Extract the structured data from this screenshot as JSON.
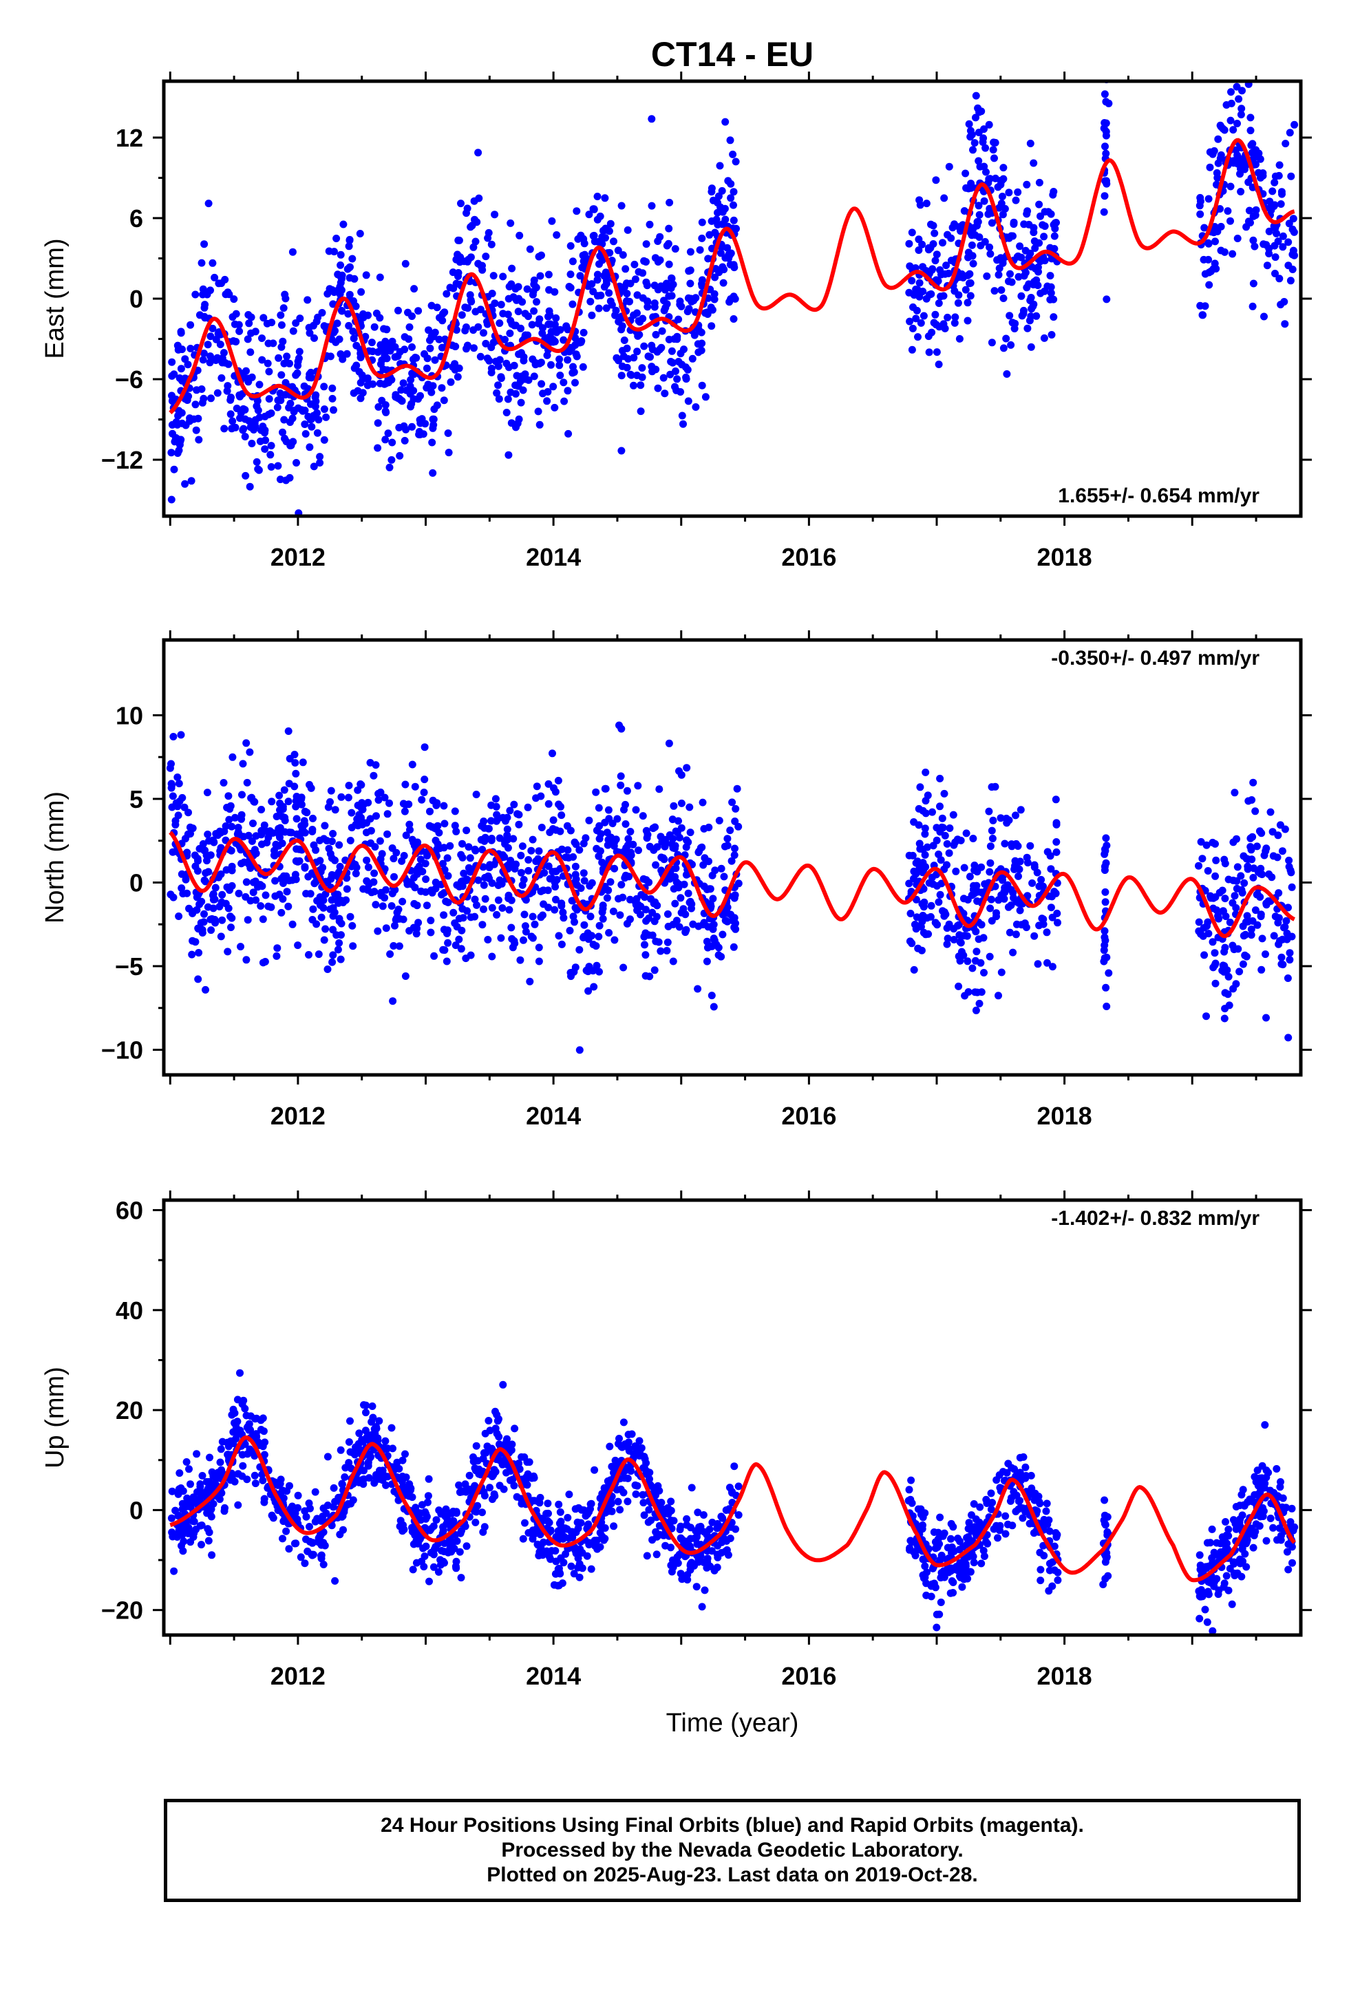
{
  "title": "CT14 - EU",
  "footer": {
    "lines": [
      "24 Hour Positions Using Final Orbits (blue) and Rapid Orbits (magenta).",
      "Processed by the Nevada Geodetic Laboratory.",
      "Plotted on 2025-Aug-23. Last data on 2019-Oct-28."
    ]
  },
  "colors": {
    "data_points": "#0000ff",
    "model_curve": "#ff0000",
    "frame": "#000000"
  },
  "chart_data": [
    {
      "type": "scatter",
      "component": "east",
      "ylabel": "East (mm)",
      "xlabel": "",
      "xlim": [
        2010.95,
        2019.85
      ],
      "ylim": [
        -16.2,
        16.2
      ],
      "x_ticks": [
        2012,
        2014,
        2016,
        2018
      ],
      "y_ticks": [
        -12,
        -6,
        0,
        6,
        12
      ],
      "rate_text": "1.655+/- 0.654 mm/yr",
      "rate_position": "bottom-right",
      "data_gaps": [
        [
          2015.45,
          2016.78
        ],
        [
          2017.95,
          2018.3
        ],
        [
          2018.35,
          2019.05
        ]
      ],
      "isolated_obs": [
        2018.32
      ],
      "series": [
        {
          "role": "observations",
          "trend": {
            "x0": 2011.0,
            "y0": -7.0,
            "x1": 2015.4,
            "y1": 7.0
          },
          "segments": [
            {
              "x": [
                2016.8,
                2017.1
              ],
              "y": [
                -2.0,
                0.0
              ]
            },
            {
              "x": [
                2017.1,
                2017.9
              ],
              "y": [
                8.0,
                2.0
              ]
            },
            {
              "x": [
                2019.05,
                2019.8
              ],
              "y": [
                5.0,
                2.0
              ]
            }
          ],
          "noise_mm": 3.2,
          "count": 2300
        },
        {
          "role": "model",
          "x": [
            2011.0,
            2011.15,
            2011.35,
            2011.6,
            2011.85,
            2012.1,
            2012.35,
            2012.6,
            2012.85,
            2013.1,
            2013.35,
            2013.6,
            2013.85,
            2014.1,
            2014.35,
            2014.6,
            2014.85,
            2015.1,
            2015.35,
            2015.6,
            2015.85,
            2016.1,
            2016.35,
            2016.6,
            2016.85,
            2017.1,
            2017.35,
            2017.6,
            2017.85,
            2018.1,
            2018.35,
            2018.6,
            2018.85,
            2019.1,
            2019.35,
            2019.6,
            2019.8
          ],
          "y": [
            -8.5,
            -6.0,
            -1.5,
            -7.0,
            -6.5,
            -7.0,
            0.0,
            -5.5,
            -5.0,
            -5.5,
            1.8,
            -3.5,
            -3.0,
            -3.5,
            3.8,
            -2.0,
            -1.5,
            -2.0,
            5.2,
            -0.5,
            0.3,
            -0.5,
            6.7,
            1.0,
            2.0,
            1.0,
            8.5,
            2.5,
            3.5,
            3.0,
            10.3,
            4.0,
            5.0,
            4.5,
            11.8,
            6.0,
            6.5
          ]
        }
      ]
    },
    {
      "type": "scatter",
      "component": "north",
      "ylabel": "North (mm)",
      "xlabel": "",
      "xlim": [
        2010.95,
        2019.85
      ],
      "ylim": [
        -11.5,
        14.5
      ],
      "x_ticks": [
        2012,
        2014,
        2016,
        2018
      ],
      "y_ticks": [
        -10,
        -5,
        0,
        5,
        10
      ],
      "rate_text": "-0.350+/- 0.497 mm/yr",
      "rate_position": "top-right",
      "data_gaps": [
        [
          2015.45,
          2016.78
        ],
        [
          2017.95,
          2018.3
        ],
        [
          2018.35,
          2019.05
        ]
      ],
      "isolated_obs": [
        2018.32
      ],
      "series": [
        {
          "role": "observations",
          "trend": {
            "x0": 2011.0,
            "y0": 3.5,
            "x1": 2015.4,
            "y1": -1.0
          },
          "segments": [
            {
              "x": [
                2016.8,
                2017.9
              ],
              "y": [
                -2.0,
                -3.0
              ]
            },
            {
              "x": [
                2019.05,
                2019.8
              ],
              "y": [
                0.0,
                0.0
              ]
            }
          ],
          "noise_mm": 2.6,
          "count": 2300
        },
        {
          "role": "model",
          "x": [
            2011.0,
            2011.25,
            2011.5,
            2011.75,
            2012.0,
            2012.25,
            2012.5,
            2012.75,
            2013.0,
            2013.25,
            2013.5,
            2013.75,
            2014.0,
            2014.25,
            2014.5,
            2014.75,
            2015.0,
            2015.25,
            2015.5,
            2015.75,
            2016.0,
            2016.25,
            2016.5,
            2016.75,
            2017.0,
            2017.25,
            2017.5,
            2017.75,
            2018.0,
            2018.25,
            2018.5,
            2018.75,
            2019.0,
            2019.25,
            2019.5,
            2019.8
          ],
          "y": [
            3.0,
            -0.5,
            2.6,
            0.5,
            2.5,
            -0.5,
            2.2,
            -0.2,
            2.2,
            -1.2,
            1.9,
            -0.8,
            1.8,
            -1.6,
            1.6,
            -0.6,
            1.5,
            -2.0,
            1.2,
            -1.0,
            1.0,
            -2.2,
            0.8,
            -1.2,
            0.8,
            -2.6,
            0.6,
            -1.4,
            0.5,
            -2.8,
            0.3,
            -1.8,
            0.2,
            -3.2,
            -0.3,
            -2.2
          ]
        }
      ]
    },
    {
      "type": "scatter",
      "component": "up",
      "ylabel": "Up (mm)",
      "xlabel": "Time (year)",
      "xlim": [
        2010.95,
        2019.85
      ],
      "ylim": [
        -25,
        62
      ],
      "x_ticks": [
        2012,
        2014,
        2016,
        2018
      ],
      "y_ticks": [
        -20,
        0,
        20,
        40,
        60
      ],
      "rate_text": "-1.402+/- 0.832 mm/yr",
      "rate_position": "top-right",
      "data_gaps": [
        [
          2015.45,
          2016.78
        ],
        [
          2017.95,
          2018.3
        ],
        [
          2018.35,
          2019.05
        ]
      ],
      "isolated_obs": [
        2018.32
      ],
      "series": [
        {
          "role": "observations",
          "trend": {
            "x0": 2011.0,
            "y0": 0.0,
            "x1": 2015.4,
            "y1": 0.0
          },
          "segments": [
            {
              "x": [
                2016.8,
                2017.9
              ],
              "y": [
                0.0,
                0.0
              ]
            },
            {
              "x": [
                2019.05,
                2019.8
              ],
              "y": [
                0.0,
                2.0
              ]
            }
          ],
          "noise_mm": 4.0,
          "count": 2300
        },
        {
          "role": "model",
          "x": [
            2011.0,
            2011.2,
            2011.4,
            2011.6,
            2011.85,
            2012.05,
            2012.3,
            2012.45,
            2012.6,
            2012.85,
            2013.05,
            2013.3,
            2013.45,
            2013.6,
            2013.85,
            2014.05,
            2014.3,
            2014.45,
            2014.6,
            2014.85,
            2015.05,
            2015.3,
            2015.45,
            2015.6,
            2015.85,
            2016.05,
            2016.3,
            2016.45,
            2016.6,
            2016.85,
            2017.0,
            2017.3,
            2017.45,
            2017.6,
            2017.85,
            2018.05,
            2018.3,
            2018.45,
            2018.6,
            2018.85,
            2019.0,
            2019.3,
            2019.45,
            2019.6,
            2019.8
          ],
          "y": [
            -3.0,
            0.0,
            5.0,
            14.5,
            2.0,
            -4.5,
            -1.0,
            8.0,
            13.0,
            1.0,
            -6.0,
            -2.0,
            6.0,
            12.0,
            -1.0,
            -7.0,
            -4.0,
            4.0,
            10.0,
            -2.0,
            -8.5,
            -5.0,
            2.0,
            9.0,
            -5.0,
            -10.0,
            -7.0,
            0.0,
            7.5,
            -5.0,
            -11.0,
            -7.0,
            -1.0,
            6.0,
            -6.0,
            -12.5,
            -8.0,
            -2.0,
            4.5,
            -7.0,
            -14.0,
            -9.0,
            -2.0,
            3.0,
            -6.5
          ]
        }
      ]
    }
  ]
}
